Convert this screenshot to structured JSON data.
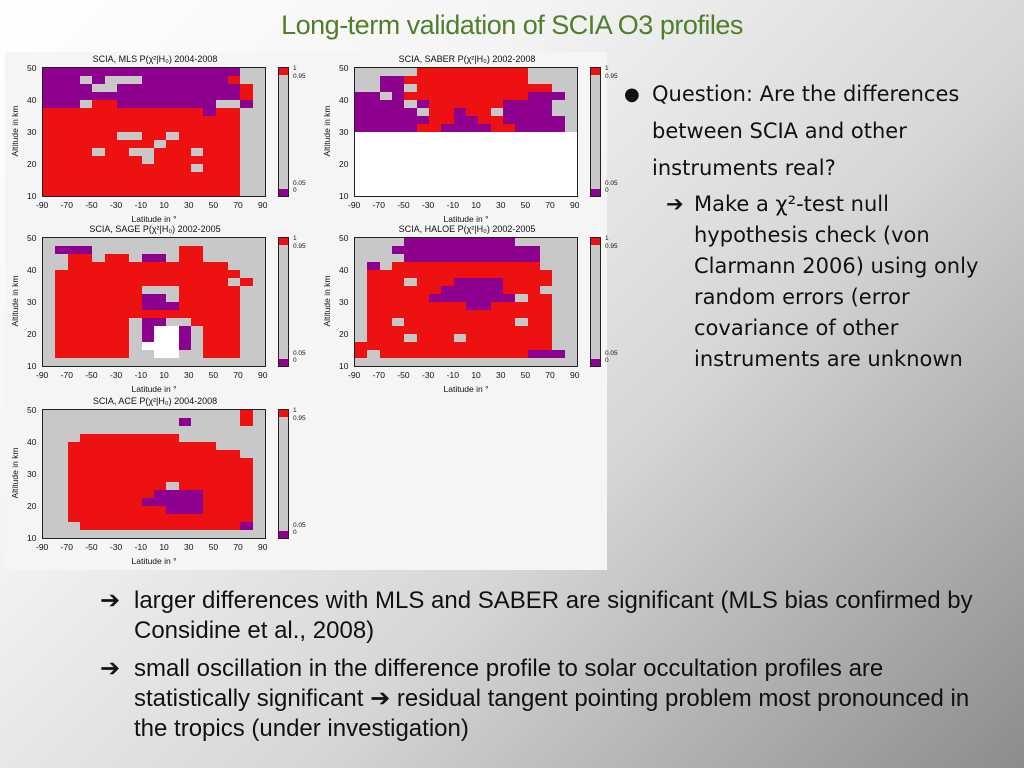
{
  "slide": {
    "title": "Long-term validation of SCIA O3 profiles",
    "question": "Question: Are the differences between SCIA and other instruments real?",
    "sub_point": "Make a χ²-test null hypothesis check (von Clarmann 2006) using only random errors (error covariance of other instruments are unknown",
    "conclusions": [
      "larger differences with MLS and SABER are significant (MLS bias confirmed by Considine et al., 2008)",
      "small oscillation in the difference profile to solar occultation profiles are statistically significant ➔ residual tangent pointing problem most pronounced in the tropics (under investigation)"
    ],
    "arrow_glyph": "➔",
    "bullet_glyph": "●"
  },
  "figure": {
    "ylabel": "Altitude in km",
    "xlabel": "Latitude in °",
    "xticks": [
      "-90",
      "-70",
      "-50",
      "-30",
      "-10",
      "10",
      "30",
      "50",
      "70",
      "90"
    ],
    "yticks": [
      "50",
      "40",
      "30",
      "20",
      "10"
    ],
    "colorbar_labels": [
      "1",
      "0.95",
      "0.05",
      "0"
    ],
    "colors": {
      "significant_high": "#ee1111",
      "significant_low": "#8e008e",
      "neutral": "#c8c8c8",
      "no_data": "#ffffff"
    },
    "panels": [
      {
        "title": "SCIA, MLS P(χ²|H₀) 2004-2008"
      },
      {
        "title": "SCIA, SABER P(χ²|H₀) 2002-2008"
      },
      {
        "title": "SCIA, SAGE P(χ²|H₀) 2002-2005"
      },
      {
        "title": "SCIA, HALOE P(χ²|H₀) 2002-2005"
      },
      {
        "title": "SCIA, ACE P(χ²|H₀) 2004-2008"
      }
    ]
  }
}
